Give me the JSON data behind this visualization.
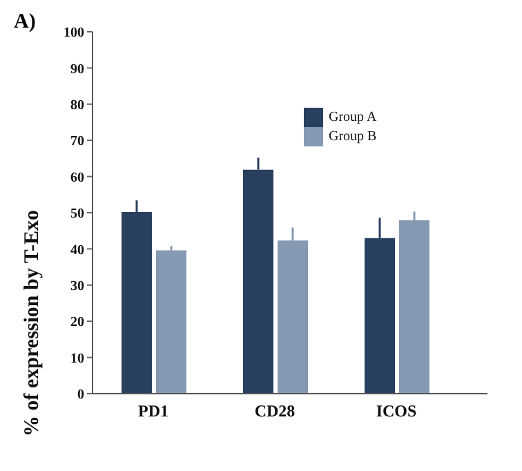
{
  "chart_data": {
    "type": "bar",
    "title": "A)",
    "ylabel": "% of expression by T-Exo",
    "categories": [
      "PD1",
      "CD28",
      "ICOS"
    ],
    "series": [
      {
        "name": "Group A",
        "color": "#283f60",
        "values": [
          50.2,
          61.9,
          43.0
        ],
        "errors": [
          [
            50.2,
            53.4
          ],
          [
            61.9,
            65.2
          ],
          [
            43.0,
            48.6
          ]
        ]
      },
      {
        "name": "Group B",
        "color": "#8599b2",
        "values": [
          39.6,
          42.3,
          47.9
        ],
        "errors": [
          [
            39.6,
            40.8
          ],
          [
            42.3,
            45.9
          ],
          [
            47.9,
            50.3
          ]
        ]
      }
    ],
    "ylim": [
      0,
      100
    ],
    "yticks": [
      0,
      10,
      20,
      30,
      40,
      50,
      60,
      70,
      80,
      90,
      100
    ],
    "grid": false,
    "legend": "top right"
  }
}
